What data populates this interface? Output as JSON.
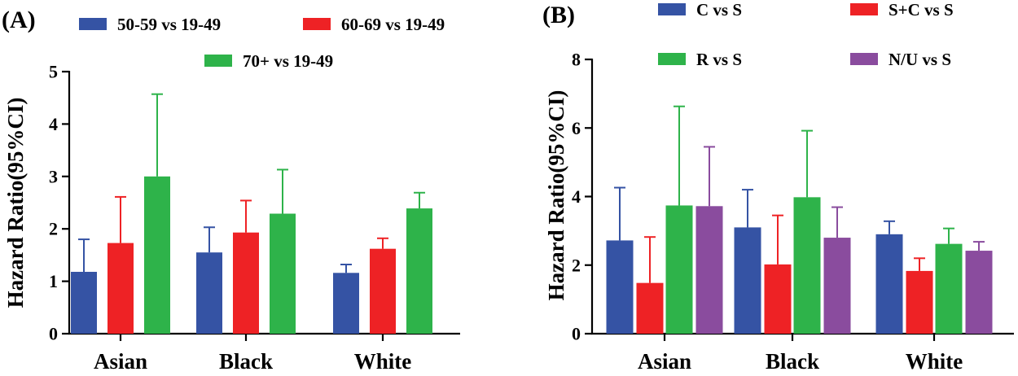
{
  "chart_data": [
    {
      "type": "bar",
      "panel_label": "(A)",
      "ylabel": "Hazard Ratio(95%CI)",
      "xlabel": "",
      "ylim": [
        0,
        5
      ],
      "yticks": [
        "0",
        "1",
        "2",
        "3",
        "4",
        "5"
      ],
      "categories": [
        "Asian",
        "Black",
        "White"
      ],
      "grid": false,
      "legend_position": "top",
      "series": [
        {
          "name": "50-59 vs 19-49",
          "color": "#3553a4",
          "values": [
            1.18,
            1.55,
            1.16
          ],
          "upper": [
            1.8,
            2.03,
            1.32
          ]
        },
        {
          "name": "60-69 vs 19-49",
          "color": "#ee2225",
          "values": [
            1.73,
            1.93,
            1.62
          ],
          "upper": [
            2.61,
            2.54,
            1.82
          ]
        },
        {
          "name": "70+ vs 19-49",
          "color": "#2eb34a",
          "values": [
            3.0,
            2.29,
            2.39
          ],
          "upper": [
            4.57,
            3.13,
            2.69
          ]
        }
      ]
    },
    {
      "type": "bar",
      "panel_label": "(B)",
      "ylabel": "Hazard Ratio(95%CI)",
      "xlabel": "",
      "ylim": [
        0,
        8
      ],
      "yticks": [
        "0",
        "2",
        "4",
        "6",
        "8"
      ],
      "categories": [
        "Asian",
        "Black",
        "White"
      ],
      "grid": false,
      "legend_position": "top",
      "series": [
        {
          "name": "C vs S",
          "color": "#3553a4",
          "values": [
            2.72,
            3.1,
            2.9
          ],
          "upper": [
            4.26,
            4.2,
            3.28
          ]
        },
        {
          "name": "S+C vs S",
          "color": "#ee2225",
          "values": [
            1.48,
            2.02,
            1.83
          ],
          "upper": [
            2.82,
            3.45,
            2.2
          ]
        },
        {
          "name": "R vs S",
          "color": "#2eb34a",
          "values": [
            3.74,
            3.98,
            2.62
          ],
          "upper": [
            6.63,
            5.92,
            3.07
          ]
        },
        {
          "name": "N/U vs S",
          "color": "#8a4c9e",
          "values": [
            3.72,
            2.8,
            2.42
          ],
          "upper": [
            5.45,
            3.69,
            2.68
          ]
        }
      ]
    }
  ]
}
